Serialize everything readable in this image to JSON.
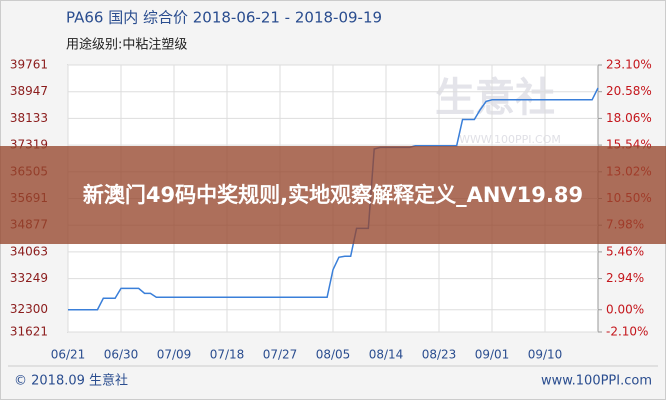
{
  "chart_data": {
    "type": "line",
    "title": "PA66 国内 综合价 2018-06-21 - 2018-09-19",
    "subtitle": "用途级别:中粘注塑级",
    "x": [
      "06/21",
      "06/22",
      "06/23",
      "06/24",
      "06/25",
      "06/26",
      "06/27",
      "06/28",
      "06/29",
      "06/30",
      "07/01",
      "07/02",
      "07/03",
      "07/04",
      "07/05",
      "07/06",
      "07/07",
      "07/08",
      "07/09",
      "07/10",
      "07/11",
      "07/12",
      "07/13",
      "07/14",
      "07/15",
      "07/16",
      "07/17",
      "07/18",
      "07/19",
      "07/20",
      "07/21",
      "07/22",
      "07/23",
      "07/24",
      "07/25",
      "07/26",
      "07/27",
      "07/28",
      "07/29",
      "07/30",
      "07/31",
      "08/01",
      "08/02",
      "08/03",
      "08/04",
      "08/05",
      "08/06",
      "08/07",
      "08/08",
      "08/09",
      "08/10",
      "08/11",
      "08/12",
      "08/13",
      "08/14",
      "08/15",
      "08/16",
      "08/17",
      "08/18",
      "08/19",
      "08/20",
      "08/21",
      "08/22",
      "08/23",
      "08/24",
      "08/25",
      "08/26",
      "08/27",
      "08/28",
      "08/29",
      "08/30",
      "08/31",
      "09/01",
      "09/02",
      "09/03",
      "09/04",
      "09/05",
      "09/06",
      "09/07",
      "09/08",
      "09/09",
      "09/10",
      "09/11",
      "09/12",
      "09/13",
      "09/14",
      "09/15",
      "09/16",
      "09/17",
      "09/18",
      "09/19"
    ],
    "series": [
      {
        "color": "#3a7fd9",
        "values": [
          32300,
          32300,
          32300,
          32300,
          32300,
          32300,
          32650,
          32650,
          32650,
          32950,
          32950,
          32950,
          32950,
          32800,
          32800,
          32680,
          32680,
          32680,
          32680,
          32680,
          32680,
          32680,
          32680,
          32680,
          32680,
          32680,
          32680,
          32680,
          32680,
          32680,
          32680,
          32680,
          32680,
          32680,
          32680,
          32680,
          32680,
          32680,
          32680,
          32680,
          32680,
          32680,
          32680,
          32680,
          32680,
          33520,
          33900,
          33930,
          33930,
          34780,
          34780,
          34780,
          37200,
          37250,
          37250,
          37250,
          37250,
          37250,
          37250,
          37300,
          37300,
          37300,
          37300,
          37300,
          37300,
          37300,
          37300,
          38100,
          38100,
          38100,
          38400,
          38650,
          38700,
          38700,
          38700,
          38700,
          38700,
          38700,
          38700,
          38700,
          38700,
          38700,
          38700,
          38700,
          38700,
          38700,
          38700,
          38700,
          38700,
          38700,
          39060
        ]
      }
    ],
    "xticks": [
      "06/21",
      "06/30",
      "07/09",
      "07/18",
      "07/27",
      "08/05",
      "08/14",
      "08/23",
      "09/01",
      "09/10"
    ],
    "ylim": [
      31621,
      39761
    ],
    "yticks": [
      39761,
      38947,
      38133,
      37319,
      36505,
      35691,
      34877,
      34063,
      33249,
      32300,
      31621
    ],
    "y2lim": [
      -2.1,
      23.1
    ],
    "y2ticks": [
      {
        "value": 23.1,
        "label": "23.10%"
      },
      {
        "value": 20.58,
        "label": "20.58%"
      },
      {
        "value": 18.06,
        "label": "18.06%"
      },
      {
        "value": 15.54,
        "label": "15.54%"
      },
      {
        "value": 13.02,
        "label": "13.02%"
      },
      {
        "value": 10.5,
        "label": "10.50%"
      },
      {
        "value": 7.98,
        "label": "7.98%"
      },
      {
        "value": 5.46,
        "label": "5.46%"
      },
      {
        "value": 2.94,
        "label": "2.94%"
      },
      {
        "value": 0.0,
        "label": "0.00%"
      },
      {
        "value": -2.1,
        "label": "-2.10%"
      }
    ],
    "grid": true
  },
  "watermark": {
    "brand": "生意社",
    "url": "WWW.100PPI.COM"
  },
  "overlay": {
    "text": "新澳门49码中奖规则,实地观察解释定义_ANV19.89"
  },
  "footer": {
    "left": "© 2018.09 生意社",
    "right": "www.100PPI.com"
  }
}
